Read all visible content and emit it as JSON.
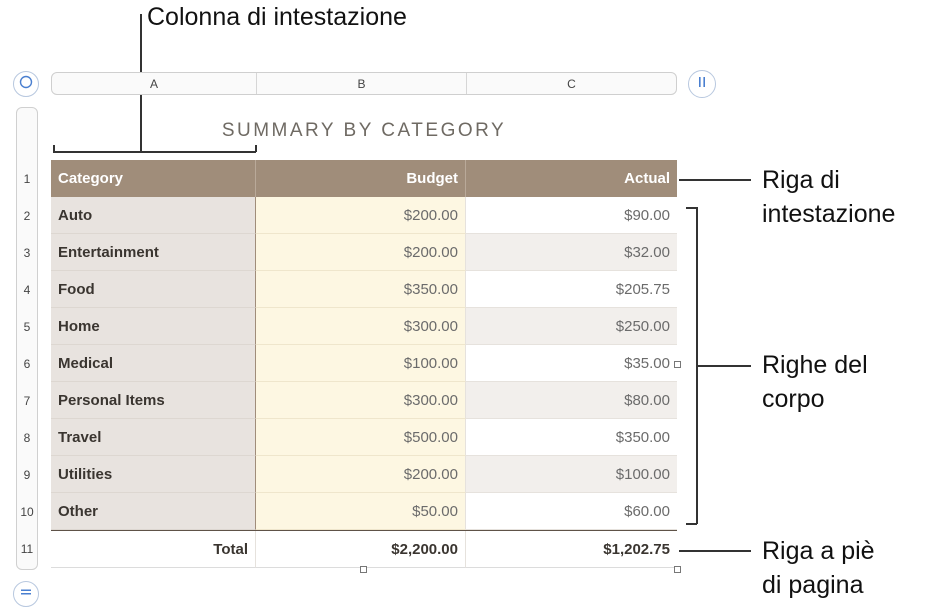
{
  "callouts": {
    "header_column": "Colonna di intestazione",
    "header_row_1": "Riga di",
    "header_row_2": "intestazione",
    "body_rows_1": "Righe del",
    "body_rows_2": "corpo",
    "footer_row_1": "Riga a piè",
    "footer_row_2": "di pagina"
  },
  "column_headers": [
    "A",
    "B",
    "C"
  ],
  "row_numbers": [
    "1",
    "2",
    "3",
    "4",
    "5",
    "6",
    "7",
    "8",
    "9",
    "10",
    "11"
  ],
  "table": {
    "title": "SUMMARY BY CATEGORY",
    "header": [
      "Category",
      "Budget",
      "Actual"
    ],
    "rows": [
      [
        "Auto",
        "$200.00",
        "$90.00"
      ],
      [
        "Entertainment",
        "$200.00",
        "$32.00"
      ],
      [
        "Food",
        "$350.00",
        "$205.75"
      ],
      [
        "Home",
        "$300.00",
        "$250.00"
      ],
      [
        "Medical",
        "$100.00",
        "$35.00"
      ],
      [
        "Personal Items",
        "$300.00",
        "$80.00"
      ],
      [
        "Travel",
        "$500.00",
        "$350.00"
      ],
      [
        "Utilities",
        "$200.00",
        "$100.00"
      ],
      [
        "Other",
        "$50.00",
        "$60.00"
      ]
    ],
    "footer": [
      "Total",
      "$2,200.00",
      "$1,202.75"
    ]
  },
  "icons": {
    "select_all": "circle-select-icon",
    "column_handle": "pause-bars-icon",
    "row_handle": "equals-icon"
  },
  "colors": {
    "header_bg": "#a08d7a",
    "header_col_bg": "#e8e3df",
    "budget_bg": "#fdf7e2",
    "alt_row_bg": "#f2efec"
  }
}
